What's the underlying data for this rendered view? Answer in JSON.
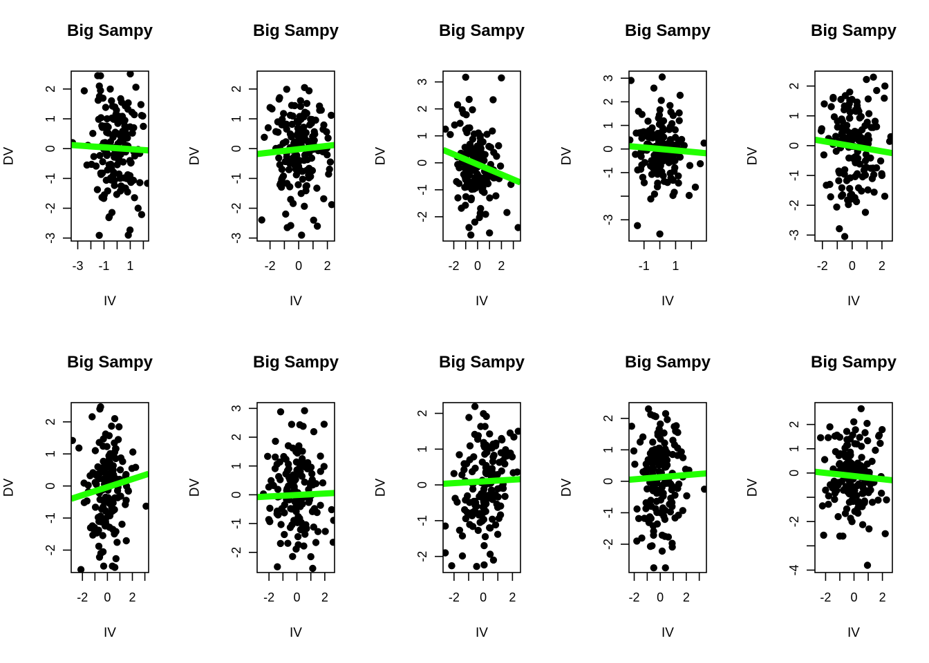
{
  "figure": {
    "layout": "2 rows x 5 columns of scatter plots",
    "point_color": "#000000",
    "fit_line_color": "#22FF00"
  },
  "chart_data": [
    {
      "type": "scatter",
      "title": "Big Sampy",
      "xlabel": "IV",
      "ylabel": "DV",
      "xlim": [
        -3.5,
        2.4
      ],
      "ylim": [
        -3.1,
        2.6
      ],
      "xticks": [
        -3,
        -2,
        -1,
        0,
        1,
        2
      ],
      "xtick_labels": [
        "-3",
        "",
        "-1",
        "",
        "1",
        ""
      ],
      "yticks": [
        -3,
        -2,
        -1,
        0,
        1,
        2
      ],
      "ytick_labels": [
        "-3",
        "-2",
        "-1",
        "0",
        "1",
        "2"
      ],
      "fit_line": {
        "x": [
          -3.5,
          2.4
        ],
        "y": [
          0.12,
          -0.06
        ]
      },
      "points_generated": {
        "n": 150,
        "x_mean": -0.1,
        "x_sd": 0.9,
        "y_mean": 0.0,
        "y_sd": 1.05,
        "r": -0.05,
        "seed": 11
      },
      "outliers": [
        [
          -2.3,
          -0.55
        ],
        [
          0.85,
          -2.9
        ],
        [
          1.6,
          -2.0
        ],
        [
          -3.4,
          0.2
        ]
      ]
    },
    {
      "type": "scatter",
      "title": "Big Sampy",
      "xlabel": "IV",
      "ylabel": "DV",
      "xlim": [
        -2.9,
        2.5
      ],
      "ylim": [
        -3.1,
        2.6
      ],
      "xticks": [
        -2,
        -1,
        0,
        1,
        2
      ],
      "xtick_labels": [
        "-2",
        "",
        "0",
        "",
        "2"
      ],
      "yticks": [
        -3,
        -2,
        -1,
        0,
        1,
        2
      ],
      "ytick_labels": [
        "-3",
        "-2",
        "-1",
        "0",
        "1",
        "2"
      ],
      "fit_line": {
        "x": [
          -2.9,
          2.5
        ],
        "y": [
          -0.18,
          0.12
        ]
      },
      "points_generated": {
        "n": 150,
        "x_mean": 0.0,
        "x_sd": 1.0,
        "y_mean": 0.0,
        "y_sd": 1.0,
        "r": 0.06,
        "seed": 23
      },
      "outliers": [
        [
          -2.4,
          0.38
        ],
        [
          -2.0,
          1.38
        ],
        [
          2.3,
          -1.88
        ],
        [
          0.2,
          -2.9
        ],
        [
          -0.8,
          -2.65
        ],
        [
          1.3,
          -2.6
        ]
      ]
    },
    {
      "type": "scatter",
      "title": "Big Sampy",
      "xlabel": "IV",
      "ylabel": "DV",
      "xlim": [
        -2.9,
        3.6
      ],
      "ylim": [
        -2.9,
        3.4
      ],
      "xticks": [
        -2,
        -1,
        0,
        1,
        2,
        3
      ],
      "xtick_labels": [
        "-2",
        "",
        "0",
        "",
        "2",
        ""
      ],
      "yticks": [
        -2,
        -1,
        0,
        1,
        2,
        3
      ],
      "ytick_labels": [
        "-2",
        "-1",
        "0",
        "1",
        "2",
        "3"
      ],
      "fit_line": {
        "x": [
          -2.9,
          3.6
        ],
        "y": [
          0.48,
          -0.73
        ]
      },
      "points_generated": {
        "n": 150,
        "x_mean": 0.0,
        "x_sd": 0.85,
        "y_mean": -0.1,
        "y_sd": 1.0,
        "r": -0.2,
        "seed": 37
      },
      "outliers": [
        [
          2.0,
          3.15
        ],
        [
          -2.7,
          1.25
        ],
        [
          3.4,
          -2.4
        ],
        [
          2.8,
          -0.8
        ],
        [
          1.0,
          -2.6
        ]
      ]
    },
    {
      "type": "scatter",
      "title": "Big Sampy",
      "xlabel": "IV",
      "ylabel": "DV",
      "xlim": [
        -1.95,
        2.95
      ],
      "ylim": [
        -3.9,
        3.3
      ],
      "xticks": [
        -1,
        0,
        1,
        2
      ],
      "xtick_labels": [
        "-1",
        "",
        "1",
        ""
      ],
      "yticks": [
        -3,
        -2,
        -1,
        0,
        1,
        2,
        3
      ],
      "ytick_labels": [
        "-3",
        "",
        "-1",
        "0",
        "1",
        "2",
        "3"
      ],
      "fit_line": {
        "x": [
          -1.95,
          2.95
        ],
        "y": [
          0.12,
          -0.18
        ]
      },
      "points_generated": {
        "n": 150,
        "x_mean": 0.1,
        "x_sd": 0.75,
        "y_mean": 0.0,
        "y_sd": 1.0,
        "r": -0.05,
        "seed": 41
      },
      "outliers": [
        [
          0.15,
          3.05
        ],
        [
          0.0,
          -3.6
        ],
        [
          2.8,
          0.25
        ],
        [
          1.9,
          -0.7
        ]
      ]
    },
    {
      "type": "scatter",
      "title": "Big Sampy",
      "xlabel": "IV",
      "ylabel": "DV",
      "xlim": [
        -2.5,
        2.7
      ],
      "ylim": [
        -3.2,
        2.5
      ],
      "xticks": [
        -2,
        -1,
        0,
        1,
        2
      ],
      "xtick_labels": [
        "-2",
        "",
        "0",
        "",
        "2"
      ],
      "yticks": [
        -3,
        -2,
        -1,
        0,
        1,
        2
      ],
      "ytick_labels": [
        "-3",
        "-2",
        "-1",
        "0",
        "1",
        "2"
      ],
      "fit_line": {
        "x": [
          -2.5,
          2.7
        ],
        "y": [
          0.2,
          -0.25
        ]
      },
      "points_generated": {
        "n": 150,
        "x_mean": 0.0,
        "x_sd": 0.95,
        "y_mean": 0.0,
        "y_sd": 1.0,
        "r": -0.08,
        "seed": 53
      },
      "outliers": [
        [
          -0.5,
          -3.05
        ],
        [
          2.6,
          0.3
        ],
        [
          2.2,
          2.0
        ],
        [
          -1.5,
          -1.3
        ],
        [
          2.0,
          -1.0
        ]
      ]
    },
    {
      "type": "scatter",
      "title": "Big Sampy",
      "xlabel": "IV",
      "ylabel": "DV",
      "xlim": [
        -2.9,
        3.3
      ],
      "ylim": [
        -2.7,
        2.6
      ],
      "xticks": [
        -2,
        -1,
        0,
        1,
        2,
        3
      ],
      "xtick_labels": [
        "-2",
        "",
        "0",
        "",
        "2",
        ""
      ],
      "yticks": [
        -2,
        -1,
        0,
        1,
        2
      ],
      "ytick_labels": [
        "-2",
        "-1",
        "0",
        "1",
        "2"
      ],
      "fit_line": {
        "x": [
          -2.9,
          3.3
        ],
        "y": [
          -0.4,
          0.38
        ]
      },
      "points_generated": {
        "n": 150,
        "x_mean": 0.0,
        "x_sd": 0.85,
        "y_mean": 0.0,
        "y_sd": 1.0,
        "r": 0.1,
        "seed": 67
      },
      "outliers": [
        [
          -2.8,
          1.42
        ],
        [
          -0.6,
          2.4
        ],
        [
          3.1,
          -0.63
        ],
        [
          -0.3,
          -2.5
        ],
        [
          0.4,
          -2.5
        ]
      ]
    },
    {
      "type": "scatter",
      "title": "Big Sampy",
      "xlabel": "IV",
      "ylabel": "DV",
      "xlim": [
        -2.85,
        2.7
      ],
      "ylim": [
        -2.7,
        3.2
      ],
      "xticks": [
        -2,
        -1,
        0,
        1,
        2
      ],
      "xtick_labels": [
        "-2",
        "",
        "0",
        "",
        "2"
      ],
      "yticks": [
        -2,
        -1,
        0,
        1,
        2,
        3
      ],
      "ytick_labels": [
        "-2",
        "-1",
        "0",
        "1",
        "2",
        "3"
      ],
      "fit_line": {
        "x": [
          -2.85,
          2.7
        ],
        "y": [
          -0.08,
          0.06
        ]
      },
      "points_generated": {
        "n": 150,
        "x_mean": 0.0,
        "x_sd": 0.95,
        "y_mean": 0.0,
        "y_sd": 0.95,
        "r": 0.02,
        "seed": 79
      },
      "outliers": [
        [
          0.55,
          2.92
        ],
        [
          1.95,
          2.45
        ],
        [
          2.6,
          -1.65
        ],
        [
          -1.4,
          -2.5
        ],
        [
          1.0,
          -2.15
        ]
      ]
    },
    {
      "type": "scatter",
      "title": "Big Sampy",
      "xlabel": "IV",
      "ylabel": "DV",
      "xlim": [
        -2.75,
        2.55
      ],
      "ylim": [
        -2.45,
        2.3
      ],
      "xticks": [
        -2,
        -1,
        0,
        1,
        2
      ],
      "xtick_labels": [
        "-2",
        "",
        "0",
        "",
        "2"
      ],
      "yticks": [
        -2,
        -1,
        0,
        1,
        2
      ],
      "ytick_labels": [
        "-2",
        "-1",
        "0",
        "1",
        "2"
      ],
      "fit_line": {
        "x": [
          -2.75,
          2.55
        ],
        "y": [
          0.03,
          0.16
        ]
      },
      "points_generated": {
        "n": 150,
        "x_mean": 0.0,
        "x_sd": 0.95,
        "y_mean": 0.05,
        "y_sd": 1.0,
        "r": 0.03,
        "seed": 97
      },
      "outliers": [
        [
          -2.6,
          -1.9
        ],
        [
          -2.6,
          -1.15
        ],
        [
          2.4,
          1.5
        ],
        [
          -0.45,
          -2.28
        ],
        [
          0.7,
          -2.1
        ]
      ]
    },
    {
      "type": "scatter",
      "title": "Big Sampy",
      "xlabel": "IV",
      "ylabel": "DV",
      "xlim": [
        -2.4,
        3.55
      ],
      "ylim": [
        -2.9,
        2.5
      ],
      "xticks": [
        -2,
        -1,
        0,
        1,
        2,
        3
      ],
      "xtick_labels": [
        "-2",
        "",
        "0",
        "",
        "2",
        ""
      ],
      "yticks": [
        -2,
        -1,
        0,
        1,
        2
      ],
      "ytick_labels": [
        "-2",
        "-1",
        "0",
        "1",
        "2"
      ],
      "fit_line": {
        "x": [
          -2.4,
          3.55
        ],
        "y": [
          0.05,
          0.25
        ]
      },
      "points_generated": {
        "n": 150,
        "x_mean": 0.0,
        "x_sd": 0.9,
        "y_mean": 0.0,
        "y_sd": 1.0,
        "r": 0.04,
        "seed": 103
      },
      "outliers": [
        [
          -0.9,
          2.3
        ],
        [
          -2.2,
          1.75
        ],
        [
          3.4,
          -0.25
        ],
        [
          -0.5,
          -2.75
        ],
        [
          0.4,
          -2.75
        ],
        [
          -1.8,
          -1.9
        ]
      ]
    },
    {
      "type": "scatter",
      "title": "Big Sampy",
      "xlabel": "IV",
      "ylabel": "DV",
      "xlim": [
        -2.75,
        2.7
      ],
      "ylim": [
        -4.1,
        2.9
      ],
      "xticks": [
        -2,
        -1,
        0,
        1,
        2
      ],
      "xtick_labels": [
        "-2",
        "",
        "0",
        "",
        "2"
      ],
      "yticks": [
        -4,
        -3,
        -2,
        -1,
        0,
        1,
        2
      ],
      "ytick_labels": [
        "-4",
        "",
        "-2",
        "",
        "0",
        "1",
        "2"
      ],
      "fit_line": {
        "x": [
          -2.75,
          2.7
        ],
        "y": [
          0.05,
          -0.3
        ]
      },
      "points_generated": {
        "n": 150,
        "x_mean": 0.0,
        "x_sd": 0.95,
        "y_mean": -0.1,
        "y_sd": 1.0,
        "r": -0.07,
        "seed": 113
      },
      "outliers": [
        [
          0.95,
          -3.8
        ],
        [
          0.5,
          2.65
        ],
        [
          -1.7,
          1.9
        ],
        [
          -1.0,
          -2.6
        ],
        [
          2.2,
          -2.5
        ]
      ]
    }
  ]
}
